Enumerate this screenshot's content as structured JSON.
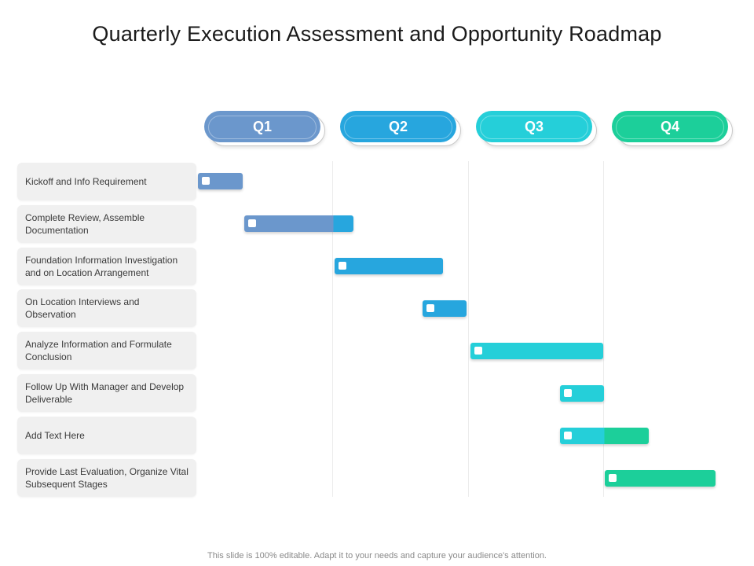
{
  "title": "Quarterly Execution Assessment and Opportunity Roadmap",
  "colors": {
    "q1": "#6b97cc",
    "q2": "#27a6de",
    "q3": "#25cfd9",
    "q4": "#1ccf9a"
  },
  "quarters": [
    {
      "label": "Q1",
      "color": "#6b97cc"
    },
    {
      "label": "Q2",
      "color": "#27a6de"
    },
    {
      "label": "Q3",
      "color": "#25cfd9"
    },
    {
      "label": "Q4",
      "color": "#1ccf9a"
    }
  ],
  "tasks": [
    {
      "label": "Kickoff and Info Requirement",
      "start": 0.0,
      "end": 0.33,
      "colors": [
        "#6b97cc"
      ]
    },
    {
      "label": "Complete Review, Assemble Documentation",
      "start": 0.34,
      "end": 1.15,
      "colors": [
        "#6b97cc",
        "#27a6de"
      ],
      "split": 1.0
    },
    {
      "label": "Foundation Information Investigation and on Location Arrangement",
      "start": 1.01,
      "end": 1.81,
      "colors": [
        "#27a6de"
      ]
    },
    {
      "label": "On Location Interviews and Observation",
      "start": 1.66,
      "end": 1.98,
      "colors": [
        "#27a6de"
      ]
    },
    {
      "label": "Analyze Information and Formulate Conclusion",
      "start": 2.01,
      "end": 2.99,
      "colors": [
        "#25cfd9"
      ]
    },
    {
      "label": "Follow Up With Manager and Develop  Deliverable",
      "start": 2.67,
      "end": 3.0,
      "colors": [
        "#25cfd9"
      ]
    },
    {
      "label": "Add Text Here",
      "start": 2.67,
      "end": 3.33,
      "colors": [
        "#25cfd9",
        "#1ccf9a"
      ],
      "split": 3.0
    },
    {
      "label": "Provide Last Evaluation, Organize Vital Subsequent Stages",
      "start": 3.0,
      "end": 3.82,
      "colors": [
        "#1ccf9a"
      ]
    }
  ],
  "footer": "This slide is 100% editable. Adapt it to your needs and capture your audience's attention."
}
